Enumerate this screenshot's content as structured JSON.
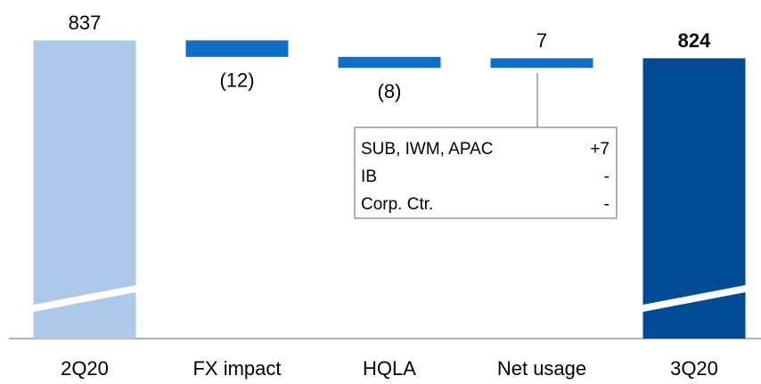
{
  "chart_data": {
    "type": "waterfall",
    "categories": [
      "2Q20",
      "FX impact",
      "HQLA",
      "Net usage",
      "3Q20"
    ],
    "values": [
      837,
      -12,
      -8,
      7,
      824
    ],
    "value_labels": [
      "837",
      "(12)",
      "(8)",
      "7",
      "824"
    ],
    "colors": [
      "#adc8e8",
      "#0f6fc8",
      "#0f6fc8",
      "#0f6fc8",
      "#004b96"
    ],
    "ylim": [
      620,
      845
    ],
    "annotation": {
      "rows": [
        {
          "label": "SUB, IWM, APAC",
          "value": "+7"
        },
        {
          "label": "IB",
          "value": "-"
        },
        {
          "label": "Corp. Ctr.",
          "value": "-"
        }
      ]
    }
  }
}
